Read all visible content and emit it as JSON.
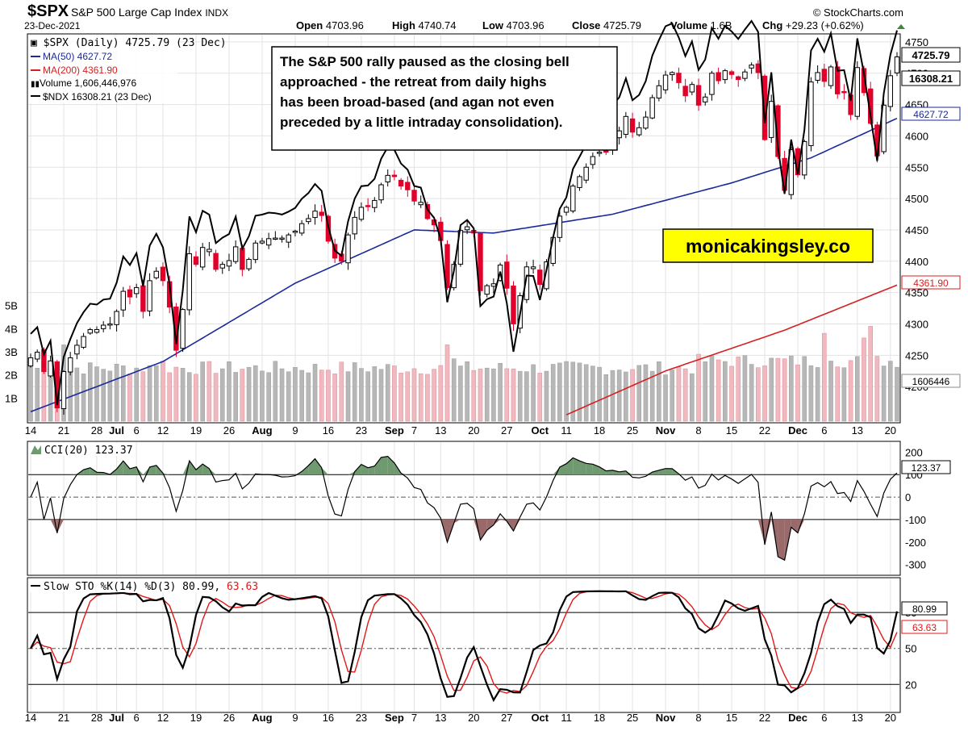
{
  "header": {
    "symbol": "$SPX",
    "name": "S&P 500 Large Cap Index",
    "exchange": "INDX",
    "date": "23-Dec-2021",
    "copyright": "© StockCharts.com",
    "open_label": "Open",
    "open": "4703.96",
    "high_label": "High",
    "high": "4740.74",
    "low_label": "Low",
    "low": "4703.96",
    "close_label": "Close",
    "close": "4725.79",
    "volume_label": "Volume",
    "volume": "1.6B",
    "chg_label": "Chg",
    "chg": "+29.23 (+0.62%)"
  },
  "legend": {
    "spx": "$SPX (Daily) 4725.79 (23 Dec)",
    "ma50": "MA(50) 4627.72",
    "ma200": "MA(200) 4361.90",
    "volume": "Volume 1,606,446,976",
    "ndx": "$NDX 16308.21 (23 Dec)"
  },
  "annotation": "The S&P 500 rally paused as the closing bell approached - the retreat from daily highs has been broad-based (and agan not even preceded by a little intraday consolidation).",
  "annotation_lines": [
    "The S&P 500 rally paused as the closing bell",
    "approached - the retreat from daily highs",
    "has been broad-based (and agan not even",
    "preceded by a little intraday consolidation)."
  ],
  "watermark": "monicakingsley.co",
  "price_tags": {
    "close": "4725.79",
    "ndx": "16308.21",
    "ma50": "4627.72",
    "ma200": "4361.90",
    "volume": "1606446"
  },
  "cci_legend": "CCI(20) 123.37",
  "cci_tag": "123.37",
  "sto_legend_prefix": "Slow STO %K(14) %D(3) 80.99,",
  "sto_legend_d": "63.63",
  "sto_k_tag": "80.99",
  "sto_d_tag": "63.63",
  "colors": {
    "up": "#000000",
    "down": "#e0002a",
    "ma50": "#1a2a9c",
    "ma200": "#d42020",
    "ndx": "#000000",
    "vol_up": "#b7b7b7",
    "vol_down": "#f0b8bf",
    "cci_pos": "#6f9a6f",
    "cci_neg": "#9a6a6a",
    "sto_k": "#000000",
    "sto_d": "#e01818",
    "tag_bg": "#ffffff",
    "watermark_bg": "#ffff00"
  },
  "chart_data": [
    {
      "type": "candlestick",
      "title": "$SPX (Daily)",
      "x_labels": [
        "14",
        "21",
        "28",
        "Jul",
        "6",
        "12",
        "19",
        "26",
        "Aug",
        "9",
        "16",
        "23",
        "Sep",
        "7",
        "13",
        "20",
        "27",
        "Oct",
        "11",
        "18",
        "25",
        "Nov",
        "8",
        "15",
        "22",
        "Dec",
        "6",
        "13",
        "20"
      ],
      "x_label_days": [
        0,
        5,
        10,
        13,
        16,
        20,
        25,
        30,
        35,
        40,
        45,
        50,
        55,
        58,
        62,
        67,
        72,
        77,
        81,
        86,
        91,
        96,
        101,
        106,
        111,
        116,
        120,
        125,
        130
      ],
      "ylim": [
        4150,
        4755
      ],
      "y_ticks": [
        4200,
        4250,
        4300,
        4350,
        4400,
        4450,
        4500,
        4550,
        4600,
        4650,
        4700,
        4750
      ],
      "close_ref": [
        4246,
        4255,
        4224,
        4241,
        4166,
        4224,
        4246,
        4266,
        4280,
        4291,
        4291,
        4298,
        4300,
        4320,
        4352,
        4343,
        4358,
        4320,
        4369,
        4384,
        4369,
        4327,
        4258,
        4323,
        4412,
        4395,
        4422,
        4419,
        4387,
        4395,
        4401,
        4423,
        4387,
        4403,
        4429,
        4432,
        4436,
        4437,
        4437,
        4442,
        4448,
        4460,
        4468,
        4480,
        4473,
        4432,
        4405,
        4400,
        4442,
        4470,
        4486,
        4488,
        4497,
        4522,
        4537,
        4535,
        4520,
        4514,
        4496,
        4494,
        4468,
        4458,
        4433,
        4358,
        4395,
        4449,
        4455,
        4445,
        4353,
        4361,
        4364,
        4394,
        4357,
        4300,
        4345,
        4391,
        4391,
        4363,
        4399,
        4438,
        4472,
        4486,
        4520,
        4535,
        4550,
        4567,
        4574,
        4574,
        4598,
        4608,
        4631,
        4606,
        4613,
        4630,
        4661,
        4680,
        4697,
        4701,
        4685,
        4664,
        4682,
        4649,
        4662,
        4700,
        4688,
        4704,
        4698,
        4690,
        4702,
        4713,
        4701,
        4594,
        4655,
        4567,
        4513,
        4578,
        4538,
        4591,
        4686,
        4701,
        4687,
        4710,
        4667,
        4669,
        4634,
        4709,
        4669,
        4620,
        4568,
        4649,
        4696,
        4726
      ],
      "volume_ylim_B": [
        0,
        6
      ],
      "volume_ticks": [
        "1B",
        "2B",
        "3B",
        "4B",
        "5B"
      ],
      "ma50_anchor": [
        [
          0,
          4160
        ],
        [
          20,
          4240
        ],
        [
          40,
          4365
        ],
        [
          58,
          4450
        ],
        [
          70,
          4445
        ],
        [
          88,
          4475
        ],
        [
          106,
          4525
        ],
        [
          118,
          4565
        ],
        [
          131,
          4628
        ]
      ],
      "ma200_anchor": [
        [
          81,
          4155
        ],
        [
          96,
          4225
        ],
        [
          114,
          4290
        ],
        [
          131,
          4362
        ]
      ],
      "ndx_overlay_note": "$NDX line overlaid on price scale"
    },
    {
      "type": "line",
      "title": "CCI(20)",
      "ylim": [
        -330,
        230
      ],
      "y_ticks": [
        200,
        100,
        0,
        -100,
        -200,
        -300
      ],
      "reference_lines": [
        100,
        -100
      ]
    },
    {
      "type": "line",
      "title": "Slow STO %K(14) %D(3)",
      "ylim": [
        0,
        105
      ],
      "y_ticks": [
        20,
        50,
        80
      ],
      "k_last": 80.99,
      "d_last": 63.63
    }
  ]
}
